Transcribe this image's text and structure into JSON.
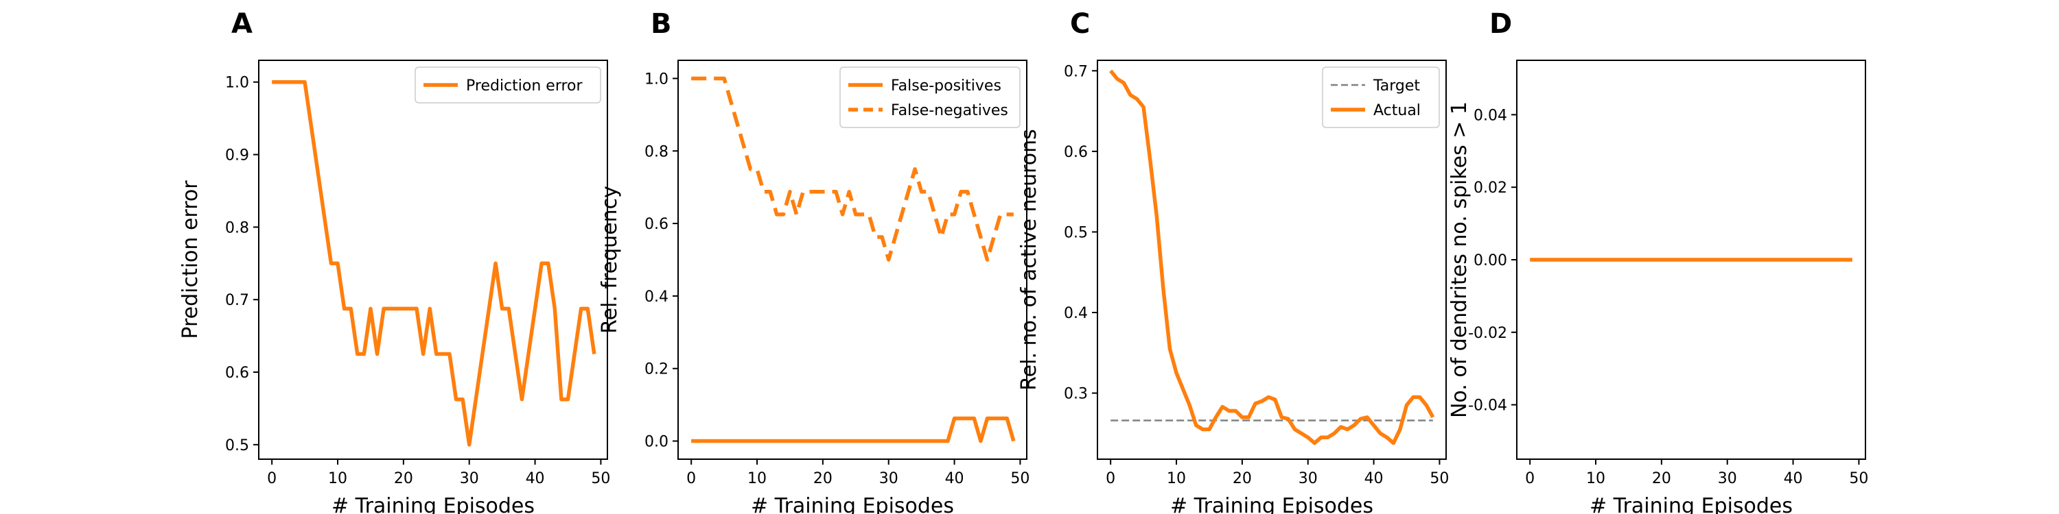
{
  "chart_data": [
    {
      "panel": "A",
      "type": "line",
      "xlabel": "# Training Episodes",
      "ylabel": "Prediction error",
      "xlim": [
        -2,
        51
      ],
      "ylim": [
        0.48,
        1.03
      ],
      "xticks": [
        0,
        10,
        20,
        30,
        40,
        50
      ],
      "yticks": [
        0.5,
        0.6,
        0.7,
        0.8,
        0.9,
        1.0
      ],
      "ytick_decimals": 1,
      "grid": false,
      "legend": "top-right",
      "x": [
        0,
        1,
        2,
        3,
        4,
        5,
        6,
        7,
        8,
        9,
        10,
        11,
        12,
        13,
        14,
        15,
        16,
        17,
        18,
        19,
        20,
        21,
        22,
        23,
        24,
        25,
        26,
        27,
        28,
        29,
        30,
        31,
        32,
        33,
        34,
        35,
        36,
        37,
        38,
        39,
        40,
        41,
        42,
        43,
        44,
        45,
        46,
        47,
        48,
        49
      ],
      "series": [
        {
          "name": "Prediction error",
          "color": "#ff7f0e",
          "dash": "solid",
          "values": [
            1.0,
            1.0,
            1.0,
            1.0,
            1.0,
            1.0,
            0.9375,
            0.875,
            0.8125,
            0.75,
            0.75,
            0.6875,
            0.6875,
            0.625,
            0.625,
            0.6875,
            0.625,
            0.6875,
            0.6875,
            0.6875,
            0.6875,
            0.6875,
            0.6875,
            0.625,
            0.6875,
            0.625,
            0.625,
            0.625,
            0.5625,
            0.5625,
            0.5,
            0.5625,
            0.625,
            0.6875,
            0.75,
            0.6875,
            0.6875,
            0.625,
            0.5625,
            0.625,
            0.6875,
            0.75,
            0.75,
            0.6875,
            0.5625,
            0.5625,
            0.625,
            0.6875,
            0.6875,
            0.625
          ]
        }
      ]
    },
    {
      "panel": "B",
      "type": "line",
      "xlabel": "# Training Episodes",
      "ylabel": "Rel. frequency",
      "xlim": [
        -2,
        51
      ],
      "ylim": [
        -0.05,
        1.05
      ],
      "xticks": [
        0,
        10,
        20,
        30,
        40,
        50
      ],
      "yticks": [
        0.0,
        0.2,
        0.4,
        0.6,
        0.8,
        1.0
      ],
      "ytick_decimals": 1,
      "grid": false,
      "legend": "top-right",
      "x": [
        0,
        1,
        2,
        3,
        4,
        5,
        6,
        7,
        8,
        9,
        10,
        11,
        12,
        13,
        14,
        15,
        16,
        17,
        18,
        19,
        20,
        21,
        22,
        23,
        24,
        25,
        26,
        27,
        28,
        29,
        30,
        31,
        32,
        33,
        34,
        35,
        36,
        37,
        38,
        39,
        40,
        41,
        42,
        43,
        44,
        45,
        46,
        47,
        48,
        49
      ],
      "series": [
        {
          "name": "False-positives",
          "color": "#ff7f0e",
          "dash": "solid",
          "values": [
            0,
            0,
            0,
            0,
            0,
            0,
            0,
            0,
            0,
            0,
            0,
            0,
            0,
            0,
            0,
            0,
            0,
            0,
            0,
            0,
            0,
            0,
            0,
            0,
            0,
            0,
            0,
            0,
            0,
            0,
            0,
            0,
            0,
            0,
            0,
            0,
            0,
            0,
            0,
            0,
            0.0625,
            0.0625,
            0.0625,
            0.0625,
            0,
            0.0625,
            0.0625,
            0.0625,
            0.0625,
            0
          ]
        },
        {
          "name": "False-negatives",
          "color": "#ff7f0e",
          "dash": "dashed",
          "values": [
            1.0,
            1.0,
            1.0,
            1.0,
            1.0,
            1.0,
            0.9375,
            0.875,
            0.8125,
            0.75,
            0.75,
            0.6875,
            0.6875,
            0.625,
            0.625,
            0.6875,
            0.625,
            0.6875,
            0.6875,
            0.6875,
            0.6875,
            0.6875,
            0.6875,
            0.625,
            0.6875,
            0.625,
            0.625,
            0.625,
            0.5625,
            0.5625,
            0.5,
            0.5625,
            0.625,
            0.6875,
            0.75,
            0.6875,
            0.6875,
            0.625,
            0.5625,
            0.625,
            0.625,
            0.6875,
            0.6875,
            0.625,
            0.5625,
            0.5,
            0.5625,
            0.625,
            0.625,
            0.625
          ]
        }
      ]
    },
    {
      "panel": "C",
      "type": "line",
      "xlabel": "# Training Episodes",
      "ylabel": "Rel. no. of active neurons",
      "xlim": [
        -2,
        51
      ],
      "ylim": [
        0.218,
        0.713
      ],
      "xticks": [
        0,
        10,
        20,
        30,
        40,
        50
      ],
      "yticks": [
        0.3,
        0.4,
        0.5,
        0.6,
        0.7
      ],
      "ytick_decimals": 1,
      "grid": false,
      "legend": "top-right",
      "x": [
        0,
        1,
        2,
        3,
        4,
        5,
        6,
        7,
        8,
        9,
        10,
        11,
        12,
        13,
        14,
        15,
        16,
        17,
        18,
        19,
        20,
        21,
        22,
        23,
        24,
        25,
        26,
        27,
        28,
        29,
        30,
        31,
        32,
        33,
        34,
        35,
        36,
        37,
        38,
        39,
        40,
        41,
        42,
        43,
        44,
        45,
        46,
        47,
        48,
        49
      ],
      "series": [
        {
          "name": "Target",
          "color": "#808080",
          "dash": "dashed-thin",
          "values": [
            0.266,
            0.266,
            0.266,
            0.266,
            0.266,
            0.266,
            0.266,
            0.266,
            0.266,
            0.266,
            0.266,
            0.266,
            0.266,
            0.266,
            0.266,
            0.266,
            0.266,
            0.266,
            0.266,
            0.266,
            0.266,
            0.266,
            0.266,
            0.266,
            0.266,
            0.266,
            0.266,
            0.266,
            0.266,
            0.266,
            0.266,
            0.266,
            0.266,
            0.266,
            0.266,
            0.266,
            0.266,
            0.266,
            0.266,
            0.266,
            0.266,
            0.266,
            0.266,
            0.266,
            0.266,
            0.266,
            0.266,
            0.266,
            0.266,
            0.266
          ]
        },
        {
          "name": "Actual",
          "color": "#ff7f0e",
          "dash": "solid",
          "values": [
            0.7,
            0.69,
            0.685,
            0.67,
            0.665,
            0.655,
            0.59,
            0.52,
            0.43,
            0.355,
            0.325,
            0.305,
            0.285,
            0.26,
            0.255,
            0.255,
            0.27,
            0.283,
            0.278,
            0.278,
            0.27,
            0.27,
            0.287,
            0.29,
            0.295,
            0.292,
            0.27,
            0.268,
            0.255,
            0.25,
            0.245,
            0.238,
            0.245,
            0.245,
            0.25,
            0.258,
            0.255,
            0.26,
            0.268,
            0.27,
            0.26,
            0.25,
            0.245,
            0.238,
            0.255,
            0.285,
            0.295,
            0.295,
            0.285,
            0.27
          ]
        }
      ]
    },
    {
      "panel": "D",
      "type": "line",
      "xlabel": "# Training Episodes",
      "ylabel": "No. of dendrites no. spikes > 1",
      "xlim": [
        -2,
        51
      ],
      "ylim": [
        -0.055,
        0.055
      ],
      "xticks": [
        0,
        10,
        20,
        30,
        40,
        50
      ],
      "yticks": [
        -0.04,
        -0.02,
        0.0,
        0.02,
        0.04
      ],
      "ytick_decimals": 2,
      "grid": false,
      "x": [
        0,
        1,
        2,
        3,
        4,
        5,
        6,
        7,
        8,
        9,
        10,
        11,
        12,
        13,
        14,
        15,
        16,
        17,
        18,
        19,
        20,
        21,
        22,
        23,
        24,
        25,
        26,
        27,
        28,
        29,
        30,
        31,
        32,
        33,
        34,
        35,
        36,
        37,
        38,
        39,
        40,
        41,
        42,
        43,
        44,
        45,
        46,
        47,
        48,
        49
      ],
      "series": [
        {
          "color": "#ff7f0e",
          "dash": "solid",
          "values": [
            0,
            0,
            0,
            0,
            0,
            0,
            0,
            0,
            0,
            0,
            0,
            0,
            0,
            0,
            0,
            0,
            0,
            0,
            0,
            0,
            0,
            0,
            0,
            0,
            0,
            0,
            0,
            0,
            0,
            0,
            0,
            0,
            0,
            0,
            0,
            0,
            0,
            0,
            0,
            0,
            0,
            0,
            0,
            0,
            0,
            0,
            0,
            0,
            0,
            0
          ]
        }
      ]
    }
  ]
}
